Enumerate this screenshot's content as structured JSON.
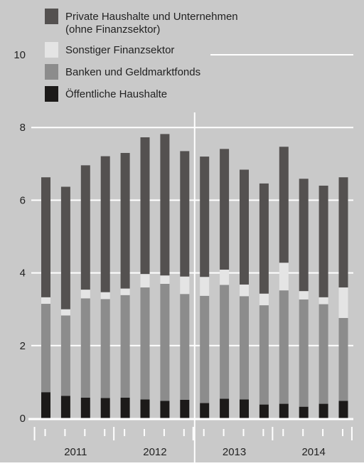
{
  "chart_data": {
    "type": "bar",
    "stacked": true,
    "title": "",
    "xlabel": "",
    "ylabel": "",
    "ylim": [
      0,
      10
    ],
    "yticks": [
      0,
      2,
      4,
      6,
      8,
      10
    ],
    "grid": true,
    "legend_position": "top-left",
    "background_color": "#c9c9c9",
    "categories": [
      "2011 Q1",
      "2011 Q2",
      "2011 Q3",
      "2011 Q4",
      "2012 Q1",
      "2012 Q2",
      "2012 Q3",
      "2012 Q4",
      "2013 Q1",
      "2013 Q2",
      "2013 Q3",
      "2013 Q4",
      "2014 Q1",
      "2014 Q2",
      "2014 Q3",
      "2014 Q4"
    ],
    "year_labels": [
      {
        "label": "2011",
        "quarters": [
          0,
          1,
          2,
          3
        ]
      },
      {
        "label": "2012",
        "quarters": [
          4,
          5,
          6,
          7
        ]
      },
      {
        "label": "2013",
        "quarters": [
          8,
          9,
          10,
          11
        ]
      },
      {
        "label": "2014",
        "quarters": [
          12,
          13,
          14,
          15
        ]
      }
    ],
    "series": [
      {
        "name": "Öffentliche Haushalte",
        "color": "#1c1a19",
        "values": [
          0.72,
          0.62,
          0.57,
          0.56,
          0.57,
          0.52,
          0.48,
          0.51,
          0.42,
          0.54,
          0.52,
          0.38,
          0.4,
          0.32,
          0.4,
          0.48
        ]
      },
      {
        "name": "Banken und Geldmarktfonds",
        "color": "#8c8c8c",
        "values": [
          2.43,
          2.21,
          2.73,
          2.72,
          2.82,
          3.08,
          3.22,
          2.91,
          2.95,
          3.13,
          2.84,
          2.73,
          3.12,
          2.95,
          2.74,
          2.28
        ]
      },
      {
        "name": "Sonstiger Finanzsektor",
        "color": "#e4e4e4",
        "values": [
          0.18,
          0.17,
          0.24,
          0.19,
          0.18,
          0.37,
          0.23,
          0.48,
          0.52,
          0.42,
          0.32,
          0.32,
          0.76,
          0.23,
          0.19,
          0.84
        ]
      },
      {
        "name": "Private Haushalte und Unternehmen (ohne Finanzsektor)",
        "color": "#545150",
        "values": [
          3.3,
          3.37,
          3.42,
          3.74,
          3.73,
          3.76,
          3.89,
          3.45,
          3.31,
          3.32,
          3.16,
          3.03,
          3.19,
          3.09,
          3.07,
          3.03
        ]
      }
    ],
    "legend_entries": [
      {
        "lines": [
          "Private Haushalte und Unternehmen",
          "(ohne Finanzsektor)"
        ],
        "color": "#545150"
      },
      {
        "lines": [
          "Sonstiger Finanzsektor"
        ],
        "color": "#e4e4e4"
      },
      {
        "lines": [
          "Banken und Geldmarktfonds"
        ],
        "color": "#8c8c8c"
      },
      {
        "lines": [
          "Öffentliche Haushalte"
        ],
        "color": "#1c1a19"
      }
    ],
    "divider_after_category_index": 7
  }
}
